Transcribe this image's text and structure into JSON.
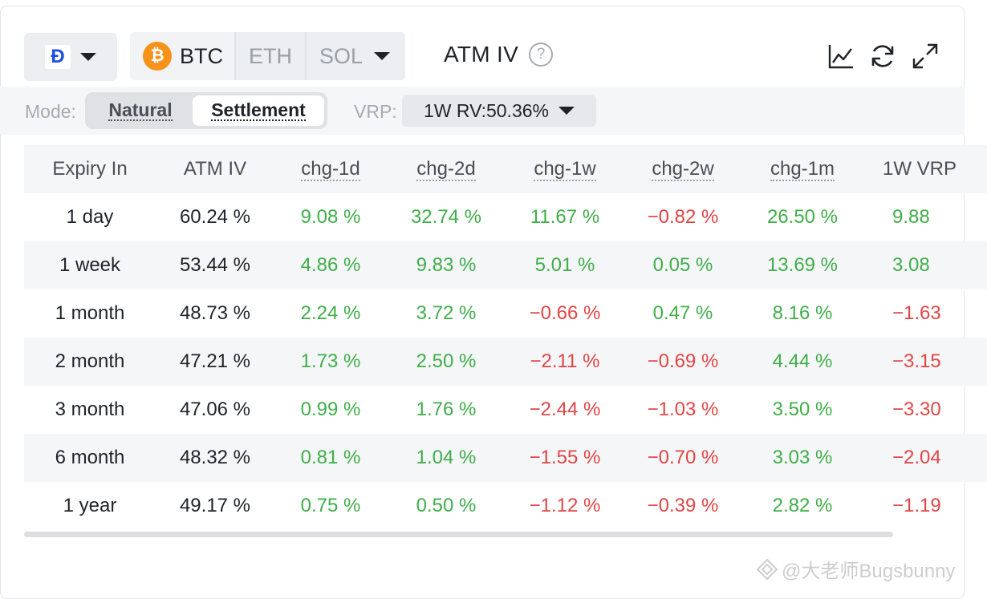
{
  "toolbar": {
    "exchange_logo": "Ɖ",
    "coins": [
      {
        "label": "BTC",
        "icon": "bitcoin-icon",
        "active": true
      },
      {
        "label": "ETH",
        "active": false
      },
      {
        "label": "SOL",
        "active": false
      }
    ],
    "title": "ATM IV",
    "help": "?"
  },
  "mode_bar": {
    "mode_label": "Mode:",
    "modes": [
      "Natural",
      "Settlement"
    ],
    "selected_mode": "Settlement",
    "vrp_label": "VRP:",
    "vrp_value": "1W RV:50.36%"
  },
  "colors": {
    "positive": "#3fae49",
    "negative": "#e04545",
    "btc": "#f7931a",
    "exchange_brand": "#1f4fe0"
  },
  "table": {
    "headers": [
      "Expiry In",
      "ATM IV",
      "chg-1d",
      "chg-2d",
      "chg-1w",
      "chg-2w",
      "chg-1m",
      "1W VRP"
    ],
    "rows": [
      [
        "1 day",
        "60.24 %",
        "9.08 %",
        "32.74 %",
        "11.67 %",
        "−0.82 %",
        "26.50 %",
        "9.88"
      ],
      [
        "1 week",
        "53.44 %",
        "4.86 %",
        "9.83 %",
        "5.01 %",
        "0.05 %",
        "13.69 %",
        "3.08"
      ],
      [
        "1 month",
        "48.73 %",
        "2.24 %",
        "3.72 %",
        "−0.66 %",
        "0.47 %",
        "8.16 %",
        "−1.63"
      ],
      [
        "2 month",
        "47.21 %",
        "1.73 %",
        "2.50 %",
        "−2.11 %",
        "−0.69 %",
        "4.44 %",
        "−3.15"
      ],
      [
        "3 month",
        "47.06 %",
        "0.99 %",
        "1.76 %",
        "−2.44 %",
        "−1.03 %",
        "3.50 %",
        "−3.30"
      ],
      [
        "6 month",
        "48.32 %",
        "0.81 %",
        "1.04 %",
        "−1.55 %",
        "−0.70 %",
        "3.03 %",
        "−2.04"
      ],
      [
        "1 year",
        "49.17 %",
        "0.75 %",
        "0.50 %",
        "−1.12 %",
        "−0.39 %",
        "2.82 %",
        "−1.19"
      ]
    ]
  },
  "watermark": "@大老师Bugsbunny"
}
